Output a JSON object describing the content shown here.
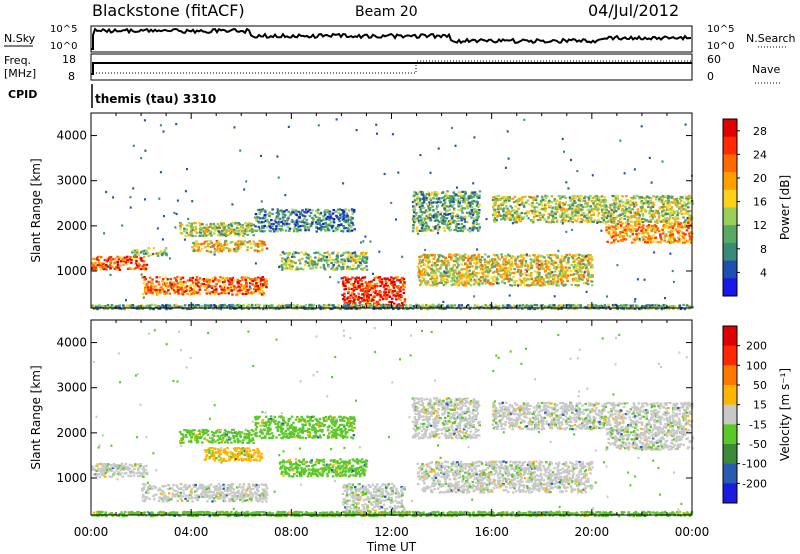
{
  "header": {
    "station": "Blackstone (fitACF)",
    "beam": "Beam 20",
    "date": "04/Jul/2012"
  },
  "panels": {
    "nsky_label": "N.Sky",
    "nsky_ticks": [
      "10^5",
      "10^0"
    ],
    "nsearch_label": "N.Search",
    "nsearch_ticks": [
      "10^5",
      "10^0"
    ],
    "freq_label_line1": "Freq.",
    "freq_label_line2": "[MHz]",
    "freq_ticks": [
      "18",
      "8"
    ],
    "nave_label": "Nave",
    "nave_ticks": [
      "60",
      "0"
    ],
    "cpid_label": "CPID",
    "cpid_value": "themis (tau) 3310"
  },
  "chart_data": [
    {
      "type": "heatmap",
      "name": "power",
      "ylabel": "Slant Range [km]",
      "xlabel": "Time UT",
      "xlim": [
        0,
        24
      ],
      "ylim": [
        180,
        4500
      ],
      "x_tick_labels": [
        "00:00",
        "04:00",
        "08:00",
        "12:00",
        "16:00",
        "20:00",
        "00:00"
      ],
      "x_tick_values": [
        0,
        4,
        8,
        12,
        16,
        20,
        24
      ],
      "y_tick_values": [
        1000,
        2000,
        3000,
        4000
      ],
      "colorbar": {
        "label": "Power [dB]",
        "tick_labels": [
          "4",
          "8",
          "12",
          "16",
          "20",
          "24",
          "28"
        ],
        "tick_values": [
          4,
          8,
          12,
          16,
          20,
          24,
          28
        ],
        "range": [
          0,
          30
        ],
        "colors": [
          "#1818e8",
          "#1f4fb0",
          "#3a8a7a",
          "#5aa865",
          "#9ad05a",
          "#ffd21a",
          "#ffa000",
          "#ff6a00",
          "#ff2a00",
          "#e00000"
        ]
      },
      "clusters": [
        {
          "t0": 0.0,
          "t1": 2.2,
          "r0": 1050,
          "r1": 1350,
          "value": 24
        },
        {
          "t0": 1.6,
          "t1": 3.0,
          "r0": 1350,
          "r1": 1550,
          "value": 12
        },
        {
          "t0": 2.0,
          "t1": 7.0,
          "r0": 500,
          "r1": 900,
          "value": 22
        },
        {
          "t0": 3.5,
          "t1": 6.5,
          "r0": 1800,
          "r1": 2100,
          "value": 14
        },
        {
          "t0": 4.0,
          "t1": 7.0,
          "r0": 1450,
          "r1": 1700,
          "value": 18
        },
        {
          "t0": 6.5,
          "t1": 10.5,
          "r0": 1900,
          "r1": 2400,
          "value": 8
        },
        {
          "t0": 7.5,
          "t1": 11.0,
          "r0": 1050,
          "r1": 1450,
          "value": 12
        },
        {
          "t0": 10.0,
          "t1": 12.5,
          "r0": 200,
          "r1": 900,
          "value": 27
        },
        {
          "t0": 12.8,
          "t1": 15.5,
          "r0": 1900,
          "r1": 2800,
          "value": 10
        },
        {
          "t0": 13.0,
          "t1": 20.0,
          "r0": 700,
          "r1": 1400,
          "value": 16
        },
        {
          "t0": 16.0,
          "t1": 24.0,
          "r0": 2100,
          "r1": 2700,
          "value": 14
        },
        {
          "t0": 20.5,
          "t1": 24.0,
          "r0": 1650,
          "r1": 2100,
          "value": 20
        },
        {
          "t0": 0.0,
          "t1": 24.0,
          "r0": 180,
          "r1": 280,
          "value": 10
        }
      ]
    },
    {
      "type": "heatmap",
      "name": "velocity",
      "ylabel": "Slant Range [km]",
      "xlabel": "Time UT",
      "xlim": [
        0,
        24
      ],
      "ylim": [
        180,
        4500
      ],
      "x_tick_labels": [
        "00:00",
        "04:00",
        "08:00",
        "12:00",
        "16:00",
        "20:00",
        "00:00"
      ],
      "x_tick_values": [
        0,
        4,
        8,
        12,
        16,
        20,
        24
      ],
      "y_tick_values": [
        1000,
        2000,
        3000,
        4000
      ],
      "colorbar": {
        "label": "Velocity [m s⁻¹]",
        "tick_labels": [
          "200",
          "100",
          "50",
          "15",
          "-15",
          "-50",
          "-100",
          "-200"
        ],
        "colors": [
          "#1a1ae0",
          "#2a5ab0",
          "#3a8a3a",
          "#5ac828",
          "#c8c8c8",
          "#ffb400",
          "#ff7800",
          "#ff2800",
          "#e00000"
        ]
      },
      "clusters": [
        {
          "t0": 0.0,
          "t1": 2.2,
          "r0": 1050,
          "r1": 1350,
          "value": "gray"
        },
        {
          "t0": 2.0,
          "t1": 7.0,
          "r0": 500,
          "r1": 900,
          "value": "gray"
        },
        {
          "t0": 3.5,
          "t1": 6.5,
          "r0": 1800,
          "r1": 2100,
          "value": "green"
        },
        {
          "t0": 4.5,
          "t1": 6.8,
          "r0": 1400,
          "r1": 1700,
          "value": "orange"
        },
        {
          "t0": 6.5,
          "t1": 10.5,
          "r0": 1900,
          "r1": 2400,
          "value": "green"
        },
        {
          "t0": 7.5,
          "t1": 11.0,
          "r0": 1050,
          "r1": 1450,
          "value": "green"
        },
        {
          "t0": 10.0,
          "t1": 12.5,
          "r0": 200,
          "r1": 900,
          "value": "gray"
        },
        {
          "t0": 12.8,
          "t1": 15.5,
          "r0": 1900,
          "r1": 2800,
          "value": "gray"
        },
        {
          "t0": 13.0,
          "t1": 20.0,
          "r0": 700,
          "r1": 1400,
          "value": "gray"
        },
        {
          "t0": 16.0,
          "t1": 24.0,
          "r0": 2100,
          "r1": 2700,
          "value": "gray"
        },
        {
          "t0": 20.5,
          "t1": 24.0,
          "r0": 1650,
          "r1": 2100,
          "value": "gray"
        },
        {
          "t0": 0.0,
          "t1": 24.0,
          "r0": 180,
          "r1": 280,
          "value": "green"
        }
      ]
    }
  ]
}
